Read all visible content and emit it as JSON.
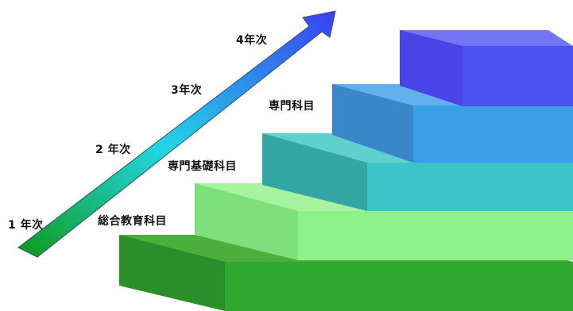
{
  "years": {
    "y1": "1 年次",
    "y2": "2 年次",
    "y3": "3年次",
    "y4": "4年次"
  },
  "courses": {
    "general": "総合教育科目",
    "basic": "専門基礎科目",
    "specialized": "専門科目"
  },
  "colors": {
    "arrow_start": "#12a412",
    "arrow_mid": "#20d4e8",
    "arrow_end": "#3a44f4",
    "step1": "#2e9e2e",
    "step2": "#8af08a",
    "step3": "#3cc4c4",
    "step4": "#3a9fe8",
    "step5": "#4b4ff0"
  }
}
